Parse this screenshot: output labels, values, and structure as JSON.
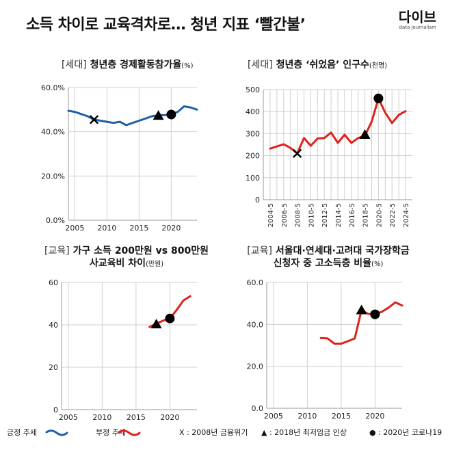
{
  "header": {
    "title": "소득 차이로 교육격차로… 청년 지표 ‘빨간불’",
    "logo": "다이브",
    "logo_sub": "data journalism"
  },
  "colors": {
    "positive": "#1f5fa8",
    "negative": "#e0211b",
    "grid": "#cfcfcf"
  },
  "legend": {
    "positive_label": "긍정 추세",
    "negative_label": "부정 추세",
    "x_label": "X : 2008년 금융위기",
    "triangle_label": "▲ : 2018년 최저임금 인상",
    "circle_label": "● : 2020년 코로나19"
  },
  "chart_data": [
    {
      "type": "line",
      "tag": "[세대]",
      "title": "청년층 경제활동참가율",
      "unit": "(%)",
      "color": "positive",
      "x": [
        2004,
        2005,
        2006,
        2007,
        2008,
        2009,
        2010,
        2011,
        2012,
        2013,
        2014,
        2015,
        2016,
        2017,
        2018,
        2019,
        2020,
        2021,
        2022,
        2023,
        2024
      ],
      "values": [
        49.5,
        49.0,
        48.0,
        47.0,
        45.5,
        45.0,
        44.5,
        44.0,
        44.5,
        43.0,
        44.0,
        45.0,
        46.0,
        47.0,
        47.5,
        47.5,
        48.0,
        49.0,
        51.5,
        51.0,
        50.0
      ],
      "xlim": [
        2004,
        2024
      ],
      "ylim": [
        0,
        60
      ],
      "xticks": [
        2005,
        2010,
        2015,
        2020
      ],
      "yticks": [
        0,
        20,
        40,
        60
      ],
      "ytick_labels": [
        "0.0%",
        "20.0%",
        "40.0%",
        "60.0%"
      ],
      "markers": [
        {
          "shape": "x",
          "x": 2008,
          "y": 45.5
        },
        {
          "shape": "triangle",
          "x": 2018,
          "y": 47.3
        },
        {
          "shape": "circle",
          "x": 2020,
          "y": 47.8
        }
      ]
    },
    {
      "type": "line",
      "tag": "[세대]",
      "title": "청년층 ‘쉬었음’ 인구수",
      "unit": "(천명)",
      "color": "negative",
      "x": [
        "2004-5",
        "2005-5",
        "2006-5",
        "2007-5",
        "2008-5",
        "2009-5",
        "2010-5",
        "2011-5",
        "2012-5",
        "2013-5",
        "2014-5",
        "2015-5",
        "2016-5",
        "2017-5",
        "2018-5",
        "2019-5",
        "2020-5",
        "2021-5",
        "2022-5",
        "2023-5",
        "2024-5"
      ],
      "values": [
        232,
        242,
        252,
        235,
        210,
        280,
        245,
        278,
        280,
        305,
        258,
        295,
        258,
        280,
        290,
        355,
        460,
        395,
        348,
        385,
        402
      ],
      "ylim": [
        0,
        500
      ],
      "yticks": [
        0,
        100,
        200,
        300,
        400,
        500
      ],
      "xtick_labels": [
        "2004-5",
        "2006-5",
        "2008-5",
        "2010-5",
        "2012-5",
        "2014-5",
        "2016-5",
        "2018-5",
        "2020-5",
        "2022-5",
        "2024-5"
      ],
      "markers": [
        {
          "shape": "x",
          "i": 4,
          "y": 210
        },
        {
          "shape": "triangle",
          "i": 14,
          "y": 295
        },
        {
          "shape": "circle",
          "i": 16,
          "y": 460
        }
      ]
    },
    {
      "type": "line",
      "tag": "[교육]",
      "title": "가구 소득 200만원 vs 800만원",
      "title2": "사교육비 차이",
      "unit": "(만원)",
      "color": "negative",
      "x": [
        2017,
        2018,
        2019,
        2020,
        2021,
        2022,
        2023
      ],
      "values": [
        39.0,
        40.5,
        42.0,
        43.0,
        47.0,
        51.5,
        53.5
      ],
      "xlim": [
        2004,
        2024
      ],
      "ylim": [
        0,
        60
      ],
      "xticks": [
        2005,
        2010,
        2015,
        2020
      ],
      "yticks": [
        0,
        20,
        40,
        60
      ],
      "ytick_labels": [
        "0",
        "20",
        "40",
        "60"
      ],
      "markers": [
        {
          "shape": "triangle",
          "x": 2018,
          "y": 40.3
        },
        {
          "shape": "circle",
          "x": 2020,
          "y": 43.0
        }
      ]
    },
    {
      "type": "line",
      "tag": "[교육]",
      "title": "서울대·연세대·고려대 국가장학금",
      "title2": "신청자 중 고소득층 비율",
      "unit": "(%)",
      "color": "negative",
      "x": [
        2012,
        2013,
        2014,
        2015,
        2016,
        2017,
        2018,
        2019,
        2020,
        2021,
        2022,
        2023,
        2024
      ],
      "values": [
        33.5,
        33.3,
        30.8,
        30.8,
        32.0,
        33.3,
        46.8,
        45.0,
        44.8,
        46.0,
        48.0,
        50.5,
        49.0
      ],
      "xlim": [
        2004,
        2024
      ],
      "ylim": [
        0,
        60
      ],
      "xticks": [
        2005,
        2010,
        2015,
        2020
      ],
      "yticks": [
        0,
        20,
        40,
        60
      ],
      "ytick_labels": [
        "0.0",
        "20.0",
        "40.0",
        "60.0"
      ],
      "markers": [
        {
          "shape": "triangle",
          "x": 2018,
          "y": 46.8
        },
        {
          "shape": "circle",
          "x": 2020,
          "y": 44.8
        }
      ]
    }
  ]
}
